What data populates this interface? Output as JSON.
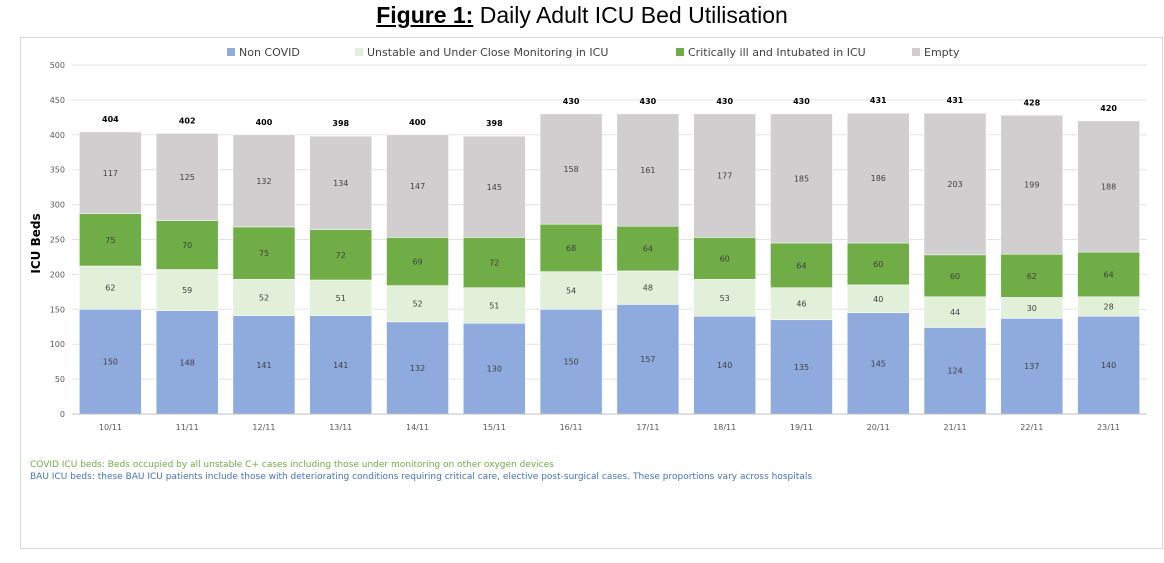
{
  "figure": {
    "label": "Figure 1:",
    "title": "Daily Adult ICU Bed Utilisation"
  },
  "chart_data": {
    "type": "bar",
    "stacked": true,
    "ylabel": "ICU Beds",
    "xlabel": "",
    "ylim": [
      0,
      500
    ],
    "yticks": [
      0,
      50,
      100,
      150,
      200,
      250,
      300,
      350,
      400,
      450,
      500
    ],
    "grid": true,
    "legend_position": "top",
    "categories": [
      "10/11",
      "11/11",
      "12/11",
      "13/11",
      "14/11",
      "15/11",
      "16/11",
      "17/11",
      "18/11",
      "19/11",
      "20/11",
      "21/11",
      "22/11",
      "23/11"
    ],
    "series": [
      {
        "name": "Non COVID",
        "color": "#8faadc",
        "values": [
          150,
          148,
          141,
          141,
          132,
          130,
          150,
          157,
          140,
          135,
          145,
          124,
          137,
          140
        ]
      },
      {
        "name": "Unstable and Under Close Monitoring in ICU",
        "color": "#e2f0d9",
        "values": [
          62,
          59,
          52,
          51,
          52,
          51,
          54,
          48,
          53,
          46,
          40,
          44,
          30,
          28
        ]
      },
      {
        "name": "Critically ill and Intubated in ICU",
        "color": "#70ad47",
        "values": [
          75,
          70,
          75,
          72,
          69,
          72,
          68,
          64,
          60,
          64,
          60,
          60,
          62,
          64
        ]
      },
      {
        "name": "Empty",
        "color": "#d0cece",
        "values": [
          117,
          125,
          132,
          134,
          147,
          145,
          158,
          161,
          177,
          185,
          186,
          203,
          199,
          188
        ]
      }
    ],
    "totals": [
      404,
      402,
      400,
      398,
      400,
      398,
      430,
      430,
      430,
      430,
      431,
      431,
      428,
      420
    ]
  },
  "notes": {
    "covid": {
      "text": "COVID ICU beds: Beds occupied by all unstable C+ cases including those under monitoring on other oxygen devices",
      "color": "#70ad47"
    },
    "bau": {
      "text": "BAU ICU beds: these BAU ICU patients include those with deteriorating conditions requiring critical care, elective post-surgical cases. These proportions vary across hospitals",
      "color": "#4472c4"
    }
  }
}
